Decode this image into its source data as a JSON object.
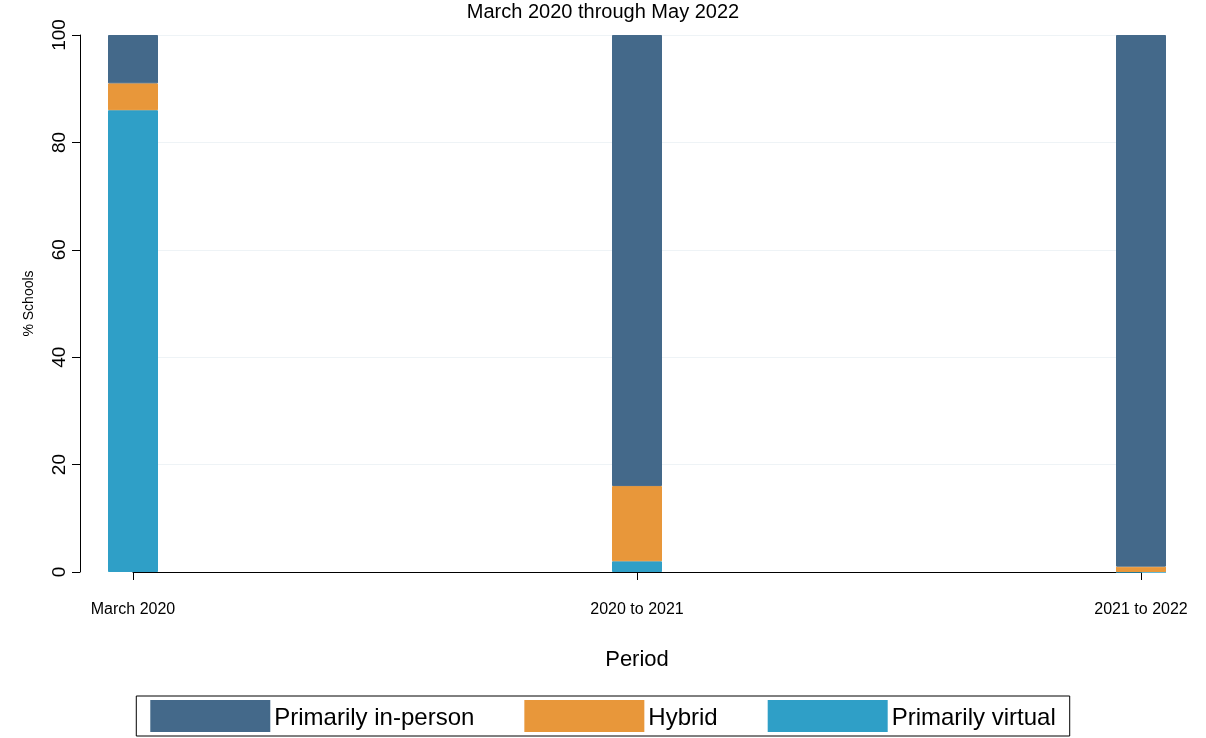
{
  "chart_data": {
    "type": "bar",
    "stacked": true,
    "title": "March 2020 through May 2022",
    "xlabel": "Period",
    "ylabel": "% Schools",
    "categories": [
      "March 2020",
      "2020 to 2021",
      "2021 to 2022"
    ],
    "series": [
      {
        "name": "Primarily virtual",
        "color": "#2f9fc7",
        "values": [
          86,
          2,
          0
        ]
      },
      {
        "name": "Hybrid",
        "color": "#e8973a",
        "values": [
          5,
          14,
          1
        ]
      },
      {
        "name": "Primarily in-person",
        "color": "#44698a",
        "values": [
          9,
          84,
          99
        ]
      }
    ],
    "ylim": [
      0,
      100
    ],
    "yticks": [
      0,
      20,
      40,
      60,
      80,
      100
    ],
    "grid": "y",
    "legend": "bottom"
  }
}
